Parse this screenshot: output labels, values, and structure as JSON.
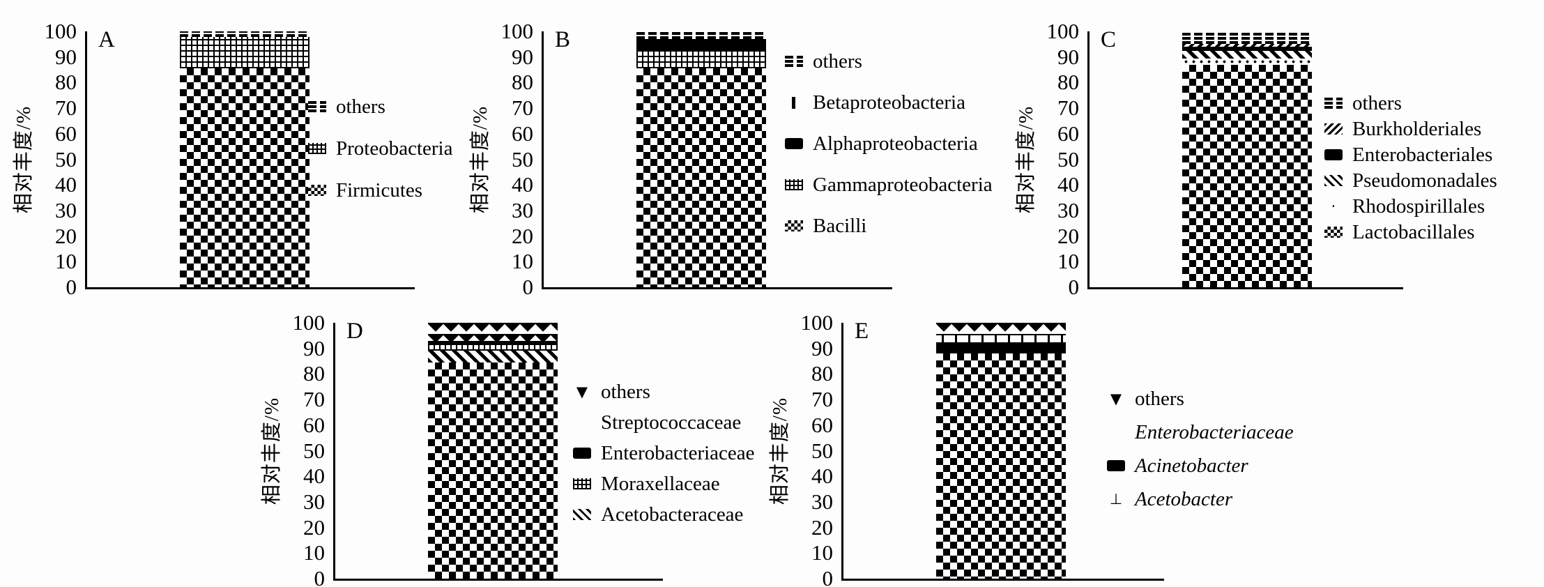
{
  "figure": {
    "background_color": "#fdfdfd",
    "ink_color": "#000000",
    "layout": "five stacked-bar panels, 3 top row (A,B,C), 2 bottom row (D,E)"
  },
  "chart_data": [
    {
      "type": "bar",
      "subtype": "stacked-single-bar",
      "label": "A",
      "ylabel": "相对丰度/%",
      "ylim": [
        0,
        100
      ],
      "yticks": [
        100,
        90,
        80,
        70,
        60,
        50,
        40,
        30,
        20,
        10,
        0
      ],
      "segments": [
        {
          "name": "Firmicutes",
          "value": 85.5,
          "pattern": "checker"
        },
        {
          "name": "Proteobacteria",
          "value": 12.3,
          "pattern": "grid"
        },
        {
          "name": "others",
          "value": 2.2,
          "pattern": "dashes"
        }
      ],
      "legend": [
        {
          "label": "others",
          "italic": false,
          "marker": {
            "type": "pattern",
            "pattern": "dashes"
          }
        },
        {
          "label": "Proteobacteria",
          "italic": false,
          "marker": {
            "type": "pattern",
            "pattern": "grid"
          }
        },
        {
          "label": "Firmicutes",
          "italic": false,
          "marker": {
            "type": "pattern",
            "pattern": "checker"
          }
        }
      ]
    },
    {
      "type": "bar",
      "subtype": "stacked-single-bar",
      "label": "B",
      "ylabel": "相对丰度/%",
      "ylim": [
        0,
        100
      ],
      "yticks": [
        100,
        90,
        80,
        70,
        60,
        50,
        40,
        30,
        20,
        10,
        0
      ],
      "segments": [
        {
          "name": "Bacilli",
          "value": 85.5,
          "pattern": "checker"
        },
        {
          "name": "Gammaproteobacteria",
          "value": 7,
          "pattern": "grid"
        },
        {
          "name": "Alphaproteobacteria",
          "value": 3.5,
          "pattern": "solid"
        },
        {
          "name": "Betaproteobacteria",
          "value": 1,
          "pattern": "solid"
        },
        {
          "name": "others",
          "value": 3,
          "pattern": "dashes"
        }
      ],
      "legend": [
        {
          "label": "others",
          "italic": false,
          "marker": {
            "type": "pattern",
            "pattern": "dashes"
          }
        },
        {
          "label": "Betaproteobacteria",
          "italic": false,
          "marker": {
            "type": "vbar"
          }
        },
        {
          "label": "Alphaproteobacteria",
          "italic": false,
          "marker": {
            "type": "pattern",
            "pattern": "solid"
          }
        },
        {
          "label": "Gammaproteobacteria",
          "italic": false,
          "marker": {
            "type": "pattern",
            "pattern": "grid"
          }
        },
        {
          "label": "Bacilli",
          "italic": false,
          "marker": {
            "type": "pattern",
            "pattern": "checker"
          }
        }
      ]
    },
    {
      "type": "bar",
      "subtype": "stacked-single-bar",
      "label": "C",
      "ylabel": "相对丰度/%",
      "ylim": [
        0,
        100
      ],
      "yticks": [
        100,
        90,
        80,
        70,
        60,
        50,
        40,
        30,
        20,
        10,
        0
      ],
      "segments": [
        {
          "name": "Lactobacillales",
          "value": 87,
          "pattern": "checker"
        },
        {
          "name": "Rhodospirillales",
          "value": 2.5,
          "pattern": "dots"
        },
        {
          "name": "Pseudomonadales",
          "value": 3,
          "pattern": "diag"
        },
        {
          "name": "Enterobacteriales",
          "value": 1.5,
          "pattern": "solid"
        },
        {
          "name": "Burkholderiales",
          "value": 1,
          "pattern": "zigzag"
        },
        {
          "name": "others",
          "value": 5,
          "pattern": "dashes"
        }
      ],
      "legend": [
        {
          "label": "others",
          "italic": false,
          "marker": {
            "type": "pattern",
            "pattern": "dashes"
          }
        },
        {
          "label": "Burkholderiales",
          "italic": false,
          "marker": {
            "type": "pattern",
            "pattern": "zigzag"
          }
        },
        {
          "label": "Enterobacteriales",
          "italic": false,
          "marker": {
            "type": "pattern",
            "pattern": "solid"
          }
        },
        {
          "label": "Pseudomonadales",
          "italic": false,
          "marker": {
            "type": "pattern",
            "pattern": "diag"
          }
        },
        {
          "label": "Rhodospirillales",
          "italic": false,
          "marker": {
            "type": "glyph",
            "glyph": "·"
          }
        },
        {
          "label": "Lactobacillales",
          "italic": false,
          "marker": {
            "type": "pattern",
            "pattern": "checker"
          }
        }
      ]
    },
    {
      "type": "bar",
      "subtype": "stacked-single-bar",
      "label": "D",
      "ylabel": "相对丰度/%",
      "ylim": [
        0,
        100
      ],
      "yticks": [
        100,
        90,
        80,
        70,
        60,
        50,
        40,
        30,
        20,
        10,
        0
      ],
      "segments": [
        {
          "name": "Streptococcaceae",
          "value": 84.5,
          "pattern": "checker"
        },
        {
          "name": "Acetobacteraceae",
          "value": 4.5,
          "pattern": "diag"
        },
        {
          "name": "Moraxellaceae",
          "value": 2.5,
          "pattern": "grid"
        },
        {
          "name": "Enterobacteriaceae",
          "value": 1.5,
          "pattern": "solid"
        },
        {
          "name": "others",
          "value": 7,
          "pattern": "tri"
        }
      ],
      "legend": [
        {
          "label": "others",
          "italic": false,
          "marker": {
            "type": "glyph",
            "glyph": "▼"
          }
        },
        {
          "label": "Streptococcaceae",
          "italic": false,
          "marker": {
            "type": "none"
          }
        },
        {
          "label": "Enterobacteriaceae",
          "italic": false,
          "marker": {
            "type": "pattern",
            "pattern": "solid"
          }
        },
        {
          "label": "Moraxellaceae",
          "italic": false,
          "marker": {
            "type": "pattern",
            "pattern": "grid"
          }
        },
        {
          "label": "Acetobacteraceae",
          "italic": false,
          "marker": {
            "type": "pattern",
            "pattern": "diag"
          }
        }
      ]
    },
    {
      "type": "bar",
      "subtype": "stacked-single-bar",
      "label": "E",
      "ylabel": "相对丰度/%",
      "ylim": [
        0,
        100
      ],
      "yticks": [
        100,
        90,
        80,
        70,
        60,
        50,
        40,
        30,
        20,
        10,
        0
      ],
      "segments": [
        {
          "name": "Enterobacteriaceae",
          "value": 88,
          "pattern": "checker"
        },
        {
          "name": "Acinetobacter",
          "value": 3.5,
          "pattern": "solid"
        },
        {
          "name": "Acetobacter",
          "value": 3.5,
          "pattern": "tee"
        },
        {
          "name": "others",
          "value": 5,
          "pattern": "tri"
        }
      ],
      "legend": [
        {
          "label": "others",
          "italic": false,
          "marker": {
            "type": "glyph",
            "glyph": "▼"
          }
        },
        {
          "label": "Enterobacteriaceae",
          "italic": true,
          "marker": {
            "type": "none"
          }
        },
        {
          "label": "Acinetobacter",
          "italic": true,
          "marker": {
            "type": "pattern",
            "pattern": "solid"
          }
        },
        {
          "label": "Acetobacter",
          "italic": true,
          "marker": {
            "type": "glyph",
            "glyph": "⊥"
          }
        }
      ]
    }
  ]
}
